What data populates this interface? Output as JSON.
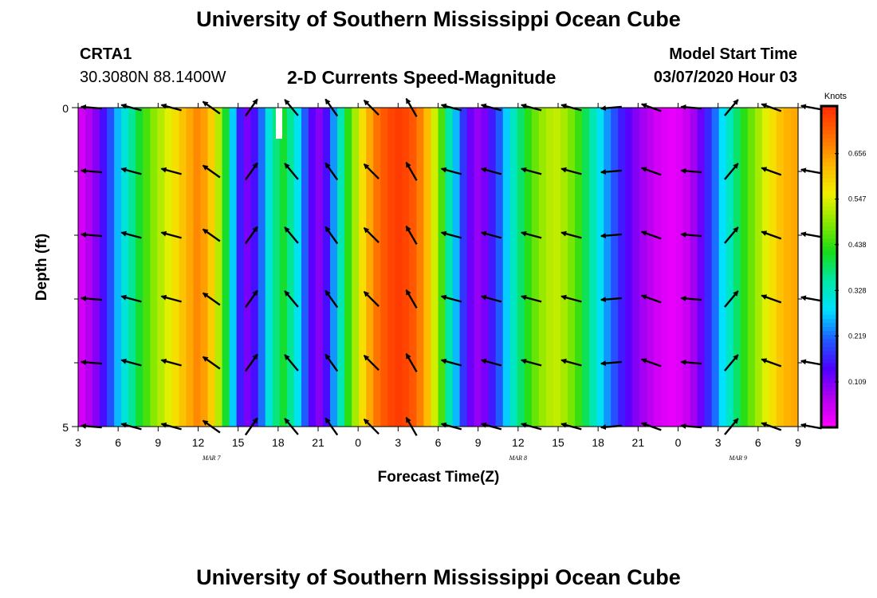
{
  "header": {
    "title": "University of Southern Mississippi Ocean Cube",
    "station": "CRTA1",
    "location": "30.3080N 88.1400W",
    "subtitle": "2-D Currents Speed-Magnitude",
    "model_start_label": "Model Start Time",
    "model_start_value": "03/07/2020 Hour 03"
  },
  "footer": {
    "title": "University of Southern Mississippi Ocean Cube"
  },
  "chart_data": {
    "type": "heatmap",
    "title": "2-D Currents Speed-Magnitude",
    "xlabel": "Forecast Time(Z)",
    "ylabel": "Depth (ft)",
    "x_tick_labels": [
      "3",
      "6",
      "9",
      "12",
      "15",
      "18",
      "21",
      "0",
      "3",
      "6",
      "9",
      "12",
      "15",
      "18",
      "21",
      "0",
      "3",
      "6",
      "9"
    ],
    "x_hours": [
      0,
      3,
      6,
      9,
      12,
      15,
      18,
      21,
      24,
      27,
      30,
      33,
      36,
      39,
      42,
      45,
      48,
      51,
      54
    ],
    "date_labels": [
      {
        "text": "MAR 7",
        "hour": 10
      },
      {
        "text": "MAR 8",
        "hour": 33
      },
      {
        "text": "MAR 9",
        "hour": 49.5
      }
    ],
    "ylim": [
      0,
      5
    ],
    "y_tick_labels": [
      "0",
      "5"
    ],
    "y_minor_ticks": [
      1,
      2,
      3,
      4
    ],
    "colorbar": {
      "unit": "Knots",
      "ticks": [
        0.109,
        0.219,
        0.328,
        0.438,
        0.547,
        0.656
      ],
      "tick_labels": [
        "0.109",
        "0.219",
        "0.328",
        "0.438",
        "0.547",
        "0.656"
      ],
      "range": [
        0,
        0.77
      ],
      "colors": [
        "#ff00ff",
        "#b300f0",
        "#4d00ff",
        "#1f5cff",
        "#00e0ff",
        "#00e8a8",
        "#18dc18",
        "#88e800",
        "#f0f000",
        "#ffb300",
        "#ff6a00",
        "#ff2a00"
      ]
    },
    "speed_knots": [
      0.04,
      0.07,
      0.1,
      0.15,
      0.2,
      0.26,
      0.31,
      0.36,
      0.41,
      0.45,
      0.49,
      0.52,
      0.55,
      0.58,
      0.61,
      0.64,
      0.67,
      0.65,
      0.6,
      0.52,
      0.41,
      0.27,
      0.16,
      0.11,
      0.15,
      0.22,
      0.31,
      0.37,
      0.41,
      0.36,
      0.29,
      0.21,
      0.13,
      0.1,
      0.15,
      0.24,
      0.34,
      0.43,
      0.51,
      0.58,
      0.64,
      0.69,
      0.72,
      0.74,
      0.75,
      0.74,
      0.72,
      0.68,
      0.62,
      0.54,
      0.45,
      0.35,
      0.26,
      0.18,
      0.12,
      0.09,
      0.11,
      0.16,
      0.21,
      0.27,
      0.33,
      0.38,
      0.43,
      0.47,
      0.5,
      0.52,
      0.53,
      0.51,
      0.48,
      0.44,
      0.39,
      0.34,
      0.29,
      0.24,
      0.2,
      0.16,
      0.13,
      0.1,
      0.08,
      0.06,
      0.04,
      0.03,
      0.02,
      0.03,
      0.05,
      0.08,
      0.12,
      0.17,
      0.22,
      0.28,
      0.33,
      0.38,
      0.43,
      0.47,
      0.51,
      0.55,
      0.58,
      0.61,
      0.63,
      0.64
    ],
    "arrow_x_hours": [
      1,
      4,
      7,
      10,
      13,
      16,
      19,
      22,
      25,
      28,
      31,
      34,
      37,
      40,
      43,
      46,
      49,
      52,
      55
    ],
    "arrow_depths_ft": [
      0,
      1,
      2,
      3,
      4,
      5
    ],
    "arrow_direction_deg": [
      275,
      285,
      285,
      305,
      35,
      320,
      325,
      315,
      330,
      285,
      285,
      285,
      285,
      265,
      290,
      275,
      40,
      290,
      280
    ]
  }
}
